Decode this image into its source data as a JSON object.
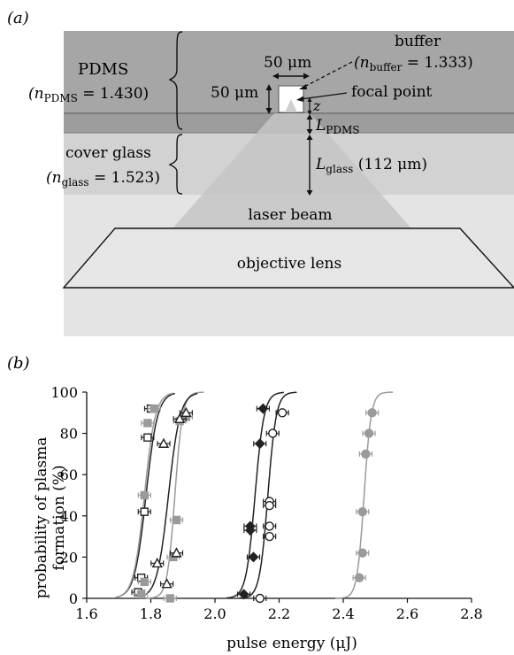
{
  "panel_a": {
    "panel_label": "(a)",
    "pdms_label": "PDMS",
    "pdms_n_prefix": "(n",
    "pdms_n_sub": "PDMS",
    "pdms_n_value": " = 1.430)",
    "buffer_label": "buffer",
    "buffer_n_prefix": "(n",
    "buffer_n_sub": "buffer",
    "buffer_n_value": " = 1.333)",
    "width_label": "50 μm",
    "height_label": "50 μm",
    "focal_point_label": "focal point",
    "z_label": "z",
    "l_pdms_main": "L",
    "l_pdms_sub": "PDMS",
    "glass_label": "cover glass",
    "glass_n_prefix": "(n",
    "glass_n_sub": "glass",
    "glass_n_value": " = 1.523)",
    "l_glass_main": "L",
    "l_glass_sub": "glass",
    "l_glass_value": " (112 μm)",
    "laser_label": "laser beam",
    "lens_label": "objective lens",
    "colors": {
      "pdms": "#a6a6a6",
      "glass": "#d2d2d2",
      "beam": "#c3c3c3",
      "lens": "#e4e4e4",
      "outline": "#111111"
    }
  },
  "panel_b": {
    "panel_label": "(b)",
    "chart_data": {
      "type": "scatter",
      "xlabel": "pulse energy (μJ)",
      "ylabel": "probability of plasma formation (%)",
      "ylabel_lines": [
        "probability of plasma",
        "formation (%)"
      ],
      "xlim": [
        1.6,
        2.8
      ],
      "ylim": [
        0,
        100
      ],
      "xticks": [
        "1.6",
        "1.8",
        "2.0",
        "2.2",
        "2.4",
        "2.6",
        "2.8"
      ],
      "yticks": [
        "0",
        "20",
        "40",
        "60",
        "80",
        "100"
      ],
      "grid": false,
      "series": [
        {
          "marker": "square-open",
          "color": "#222222",
          "points": [
            [
              1.76,
              3
            ],
            [
              1.77,
              10
            ],
            [
              1.78,
              42
            ],
            [
              1.79,
              78
            ],
            [
              1.8,
              92
            ]
          ],
          "fit": {
            "x0": 1.785,
            "k": 0.018
          }
        },
        {
          "marker": "square-filled",
          "color": "#9a9a9a",
          "points": [
            [
              1.77,
              2
            ],
            [
              1.78,
              8
            ],
            [
              1.78,
              50
            ],
            [
              1.79,
              85
            ],
            [
              1.81,
              92
            ]
          ],
          "fit": {
            "x0": 1.78,
            "k": 0.017
          }
        },
        {
          "marker": "square-filled",
          "color": "#9a9a9a",
          "points": [
            [
              1.86,
              0
            ],
            [
              1.87,
              20
            ],
            [
              1.88,
              38
            ],
            [
              1.89,
              86
            ],
            [
              1.91,
              88
            ]
          ],
          "fit": {
            "x0": 1.875,
            "k": 0.012
          }
        },
        {
          "marker": "triangle-open",
          "color": "#222222",
          "points": [
            [
              1.82,
              17
            ],
            [
              1.85,
              7
            ],
            [
              1.84,
              75
            ],
            [
              1.88,
              22
            ],
            [
              1.89,
              87
            ],
            [
              1.91,
              90
            ]
          ],
          "fit": {
            "x0": 1.855,
            "k": 0.018
          }
        },
        {
          "marker": "diamond-filled",
          "color": "#222222",
          "points": [
            [
              2.09,
              2
            ],
            [
              2.12,
              20
            ],
            [
              2.11,
              35
            ],
            [
              2.11,
              33
            ],
            [
              2.14,
              75
            ],
            [
              2.15,
              92
            ]
          ],
          "fit": {
            "x0": 2.125,
            "k": 0.014
          }
        },
        {
          "marker": "circle-open",
          "color": "#222222",
          "points": [
            [
              2.14,
              0
            ],
            [
              2.17,
              30
            ],
            [
              2.17,
              35
            ],
            [
              2.17,
              47
            ],
            [
              2.17,
              45
            ],
            [
              2.18,
              80
            ],
            [
              2.21,
              90
            ]
          ],
          "fit": {
            "x0": 2.165,
            "k": 0.013
          }
        },
        {
          "marker": "circle-filled",
          "color": "#9a9a9a",
          "points": [
            [
              2.45,
              10
            ],
            [
              2.46,
              22
            ],
            [
              2.46,
              42
            ],
            [
              2.47,
              70
            ],
            [
              2.48,
              80
            ],
            [
              2.49,
              90
            ]
          ],
          "fit": {
            "x0": 2.465,
            "k": 0.011
          }
        }
      ]
    }
  }
}
